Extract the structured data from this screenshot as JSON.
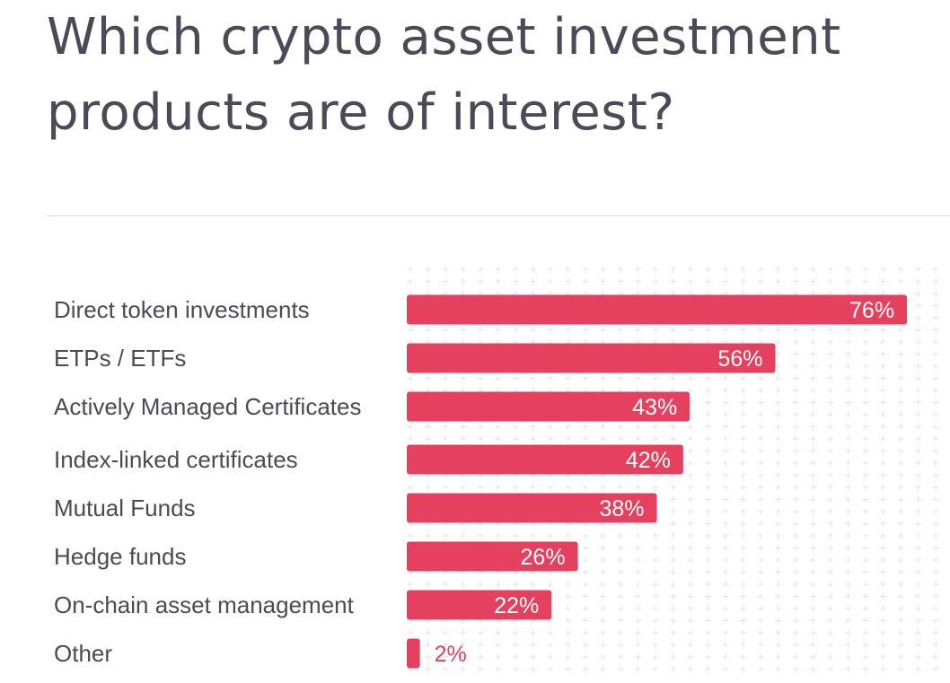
{
  "title": "Which crypto asset investment products are of interest?",
  "colors": {
    "bar": "#e5405e",
    "text": "#4a4a58",
    "grid": "#e4e4e6",
    "divider": "#d7d7d9"
  },
  "chart_data": {
    "type": "bar",
    "orientation": "horizontal",
    "title": "Which crypto asset investment products are of interest?",
    "categories": [
      "Direct token investments",
      "ETPs / ETFs",
      "Actively Managed Certificates",
      "Index-linked certificates",
      "Mutual Funds",
      "Hedge funds",
      "On-chain asset management",
      "Other"
    ],
    "values": [
      76,
      56,
      43,
      42,
      38,
      26,
      22,
      2
    ],
    "value_labels": [
      "76%",
      "56%",
      "43%",
      "42%",
      "38%",
      "26%",
      "22%",
      "2%"
    ],
    "unit": "%",
    "xlim": [
      0,
      100
    ],
    "grid": "plus-pattern background",
    "legend": "none"
  }
}
